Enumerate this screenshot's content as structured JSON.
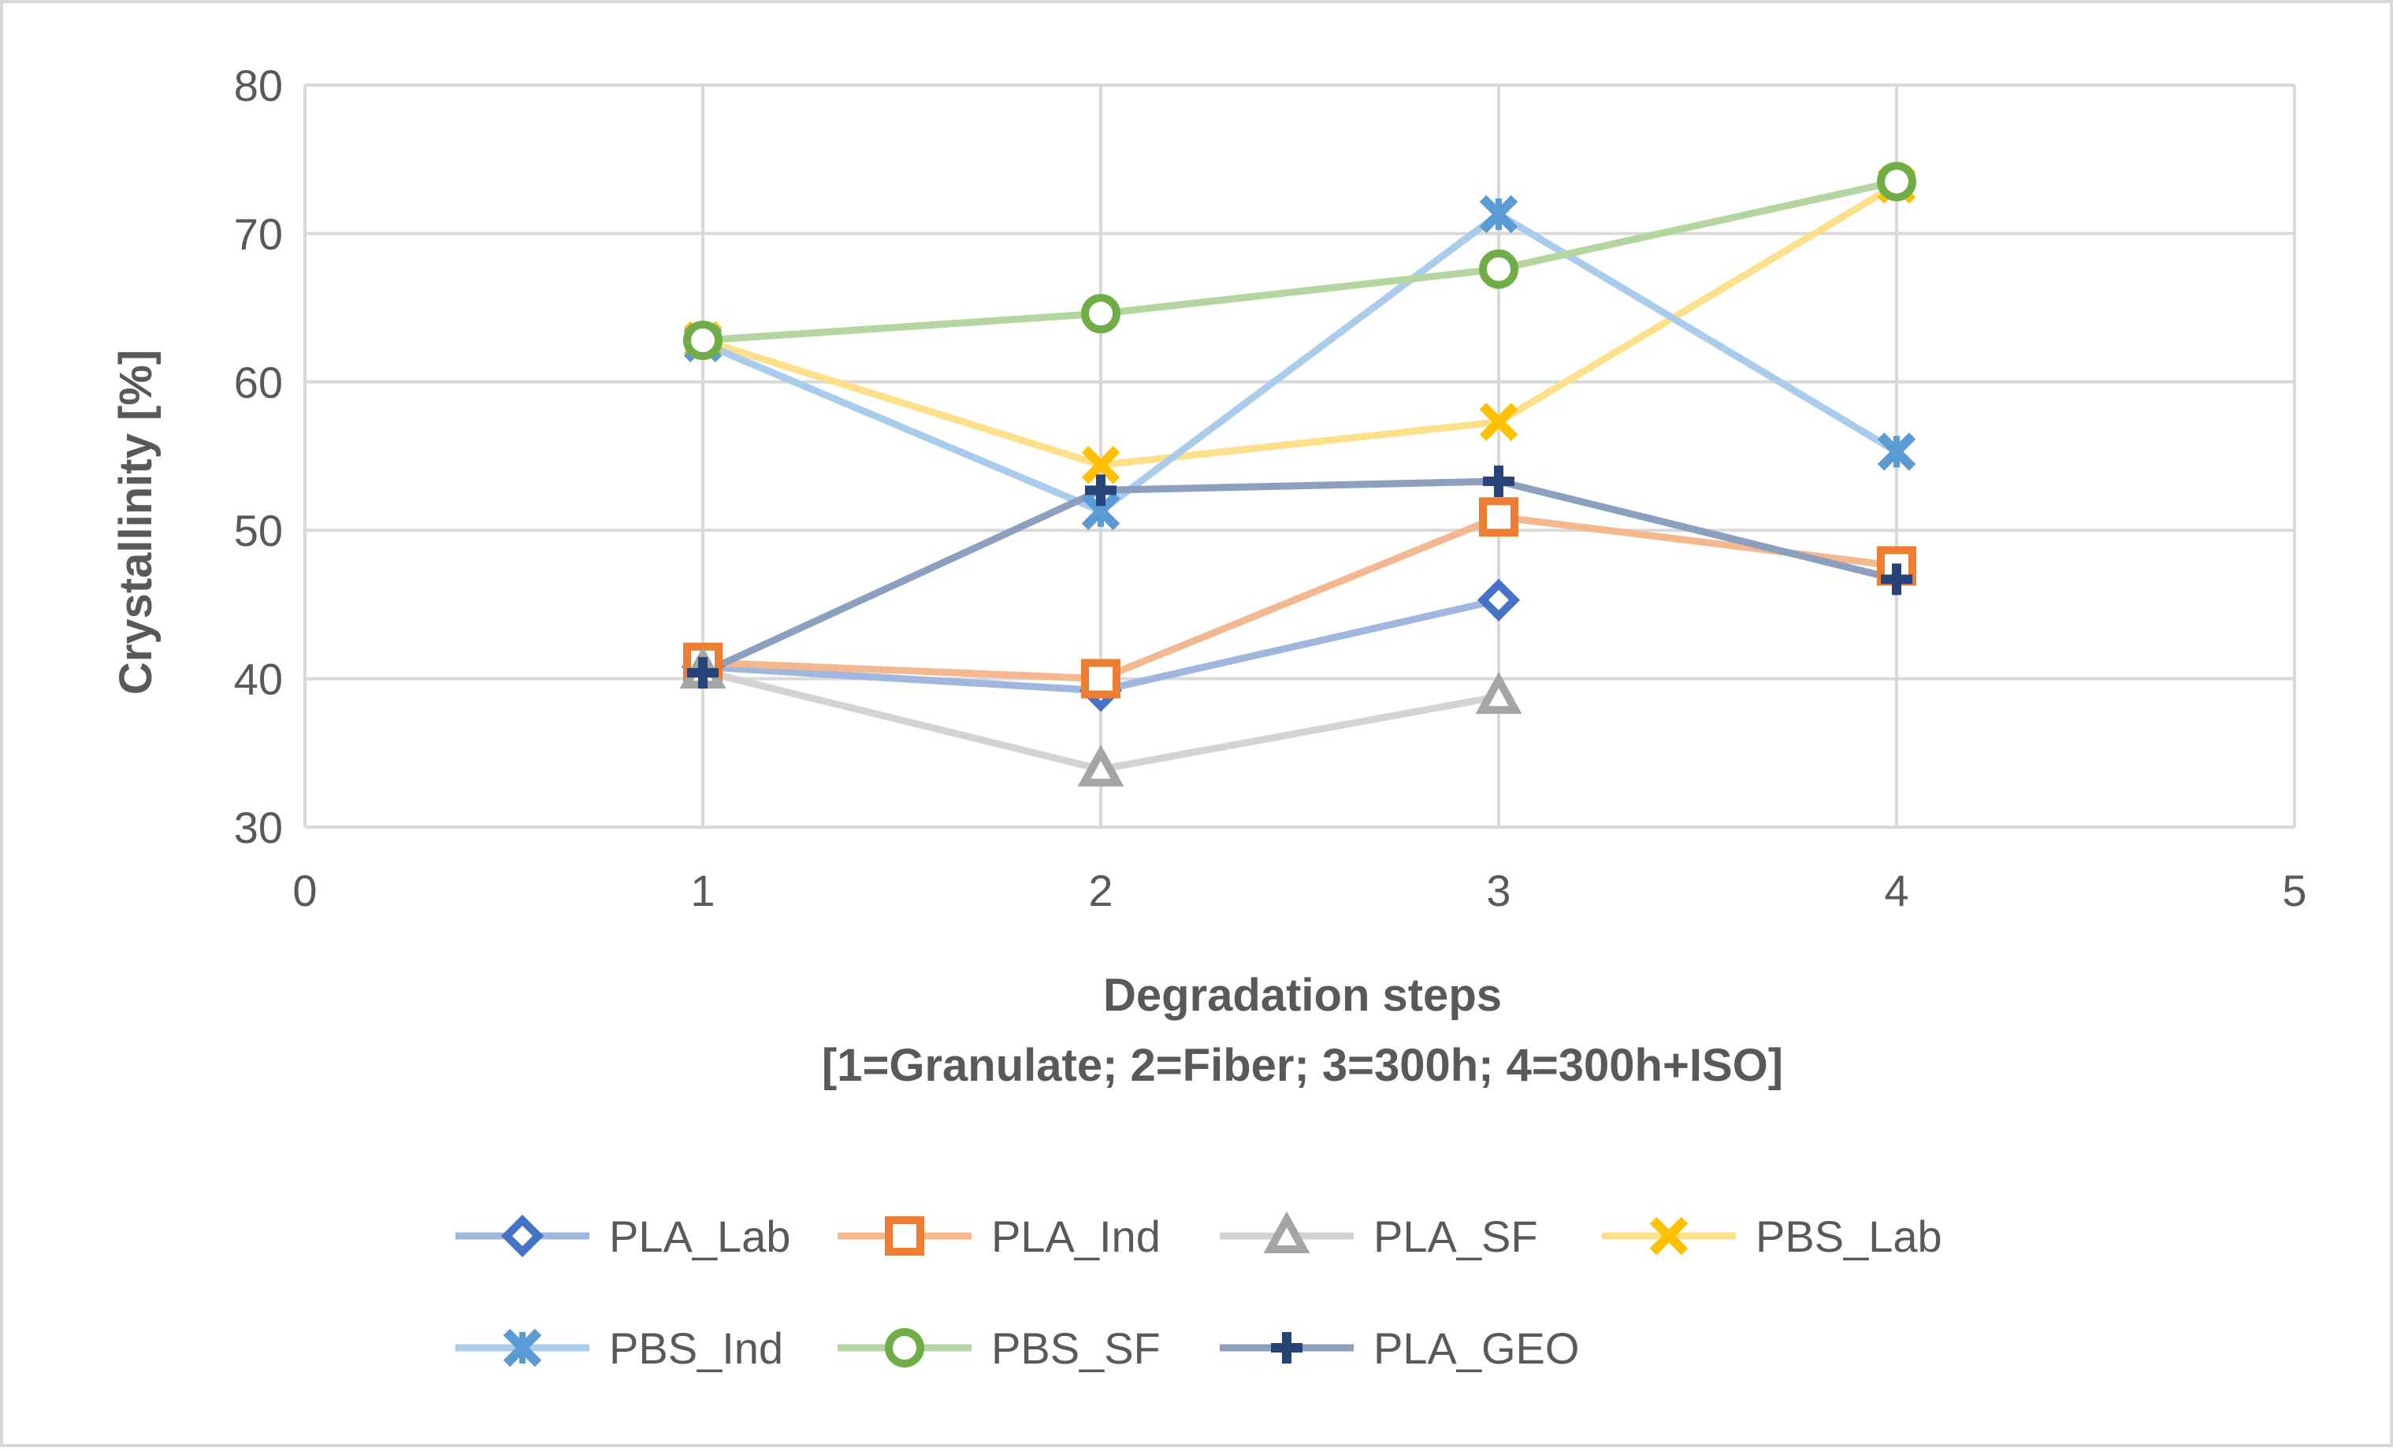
{
  "chart_data": {
    "type": "line",
    "title": "",
    "xlabel": "Degradation steps",
    "xlabel_line2": "[1=Granulate; 2=Fiber; 3=300h; 4=300h+ISO]",
    "ylabel": "Crystallinity [%]",
    "xlim": [
      0,
      5
    ],
    "ylim": [
      30,
      80
    ],
    "xticks": [
      0,
      1,
      2,
      3,
      4,
      5
    ],
    "yticks": [
      30,
      40,
      50,
      60,
      70,
      80
    ],
    "grid": true,
    "legend_position": "bottom",
    "series": [
      {
        "name": "PLA_Lab",
        "marker": "diamond",
        "line_color": "#9fb6df",
        "marker_color": "#4472c4",
        "points": [
          [
            1,
            40.8
          ],
          [
            2,
            39.2
          ],
          [
            3,
            45.3
          ]
        ]
      },
      {
        "name": "PLA_Ind",
        "marker": "square",
        "line_color": "#f4b88f",
        "marker_color": "#ed7d31",
        "points": [
          [
            1,
            41.1
          ],
          [
            2,
            40.0
          ],
          [
            3,
            50.9
          ],
          [
            4,
            47.6
          ]
        ]
      },
      {
        "name": "PLA_SF",
        "marker": "triangle",
        "line_color": "#d3d3d3",
        "marker_color": "#a5a5a5",
        "points": [
          [
            1,
            40.5
          ],
          [
            2,
            33.9
          ],
          [
            3,
            38.8
          ]
        ]
      },
      {
        "name": "PBS_Lab",
        "marker": "x",
        "line_color": "#ffe08a",
        "marker_color": "#ffc000",
        "points": [
          [
            1,
            62.8
          ],
          [
            2,
            54.4
          ],
          [
            3,
            57.3
          ],
          [
            4,
            73.3
          ]
        ]
      },
      {
        "name": "PBS_Ind",
        "marker": "star",
        "line_color": "#a9cbec",
        "marker_color": "#5b9bd5",
        "points": [
          [
            1,
            62.6
          ],
          [
            2,
            51.3
          ],
          [
            3,
            71.3
          ],
          [
            4,
            55.3
          ]
        ]
      },
      {
        "name": "PBS_SF",
        "marker": "circle",
        "line_color": "#b4d5a0",
        "marker_color": "#70ad47",
        "points": [
          [
            1,
            62.8
          ],
          [
            2,
            64.6
          ],
          [
            3,
            67.6
          ],
          [
            4,
            73.5
          ]
        ]
      },
      {
        "name": "PLA_GEO",
        "marker": "plus",
        "line_color": "#8d9fbe",
        "marker_color": "#264478",
        "points": [
          [
            1,
            40.4
          ],
          [
            2,
            52.7
          ],
          [
            3,
            53.3
          ],
          [
            4,
            46.7
          ]
        ]
      }
    ]
  }
}
